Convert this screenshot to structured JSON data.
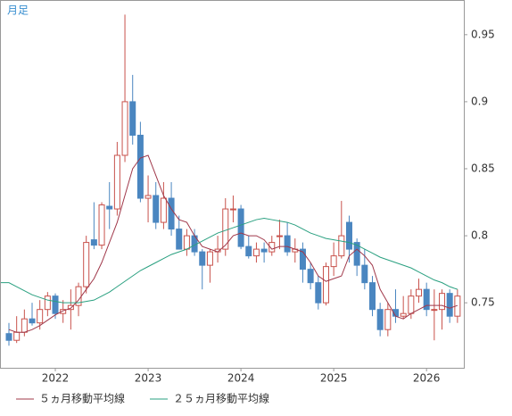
{
  "chart_data": {
    "type": "candlestick",
    "label": "月足",
    "categories": [
      null,
      null,
      null,
      null,
      null,
      null,
      "2022",
      null,
      null,
      null,
      null,
      null,
      null,
      null,
      null,
      null,
      null,
      null,
      "2023",
      null,
      null,
      null,
      null,
      null,
      null,
      null,
      null,
      null,
      null,
      null,
      "2024",
      null,
      null,
      null,
      null,
      null,
      null,
      null,
      null,
      null,
      null,
      null,
      "2025",
      null,
      null,
      null,
      null,
      null,
      null,
      null,
      null,
      null,
      null,
      null,
      "2026",
      null,
      null,
      null,
      null
    ],
    "open": [
      0.727,
      0.722,
      0.728,
      0.738,
      0.735,
      0.745,
      0.755,
      0.742,
      0.745,
      0.748,
      0.762,
      0.797,
      0.793,
      0.822,
      0.82,
      0.86,
      0.9,
      0.875,
      0.828,
      0.83,
      0.81,
      0.828,
      0.805,
      0.79,
      0.8,
      0.788,
      0.778,
      0.788,
      0.79,
      0.82,
      0.82,
      0.792,
      0.785,
      0.79,
      0.788,
      0.8,
      0.8,
      0.788,
      0.79,
      0.775,
      0.765,
      0.75,
      0.777,
      0.785,
      0.81,
      0.795,
      0.778,
      0.765,
      0.745,
      0.73,
      0.745,
      0.74,
      0.742,
      0.755,
      0.76,
      0.745,
      0.745,
      0.757,
      0.74
    ],
    "high": [
      0.735,
      0.74,
      0.745,
      0.75,
      0.752,
      0.758,
      0.757,
      0.752,
      0.76,
      0.765,
      0.8,
      0.825,
      0.825,
      0.84,
      0.87,
      0.965,
      0.92,
      0.885,
      0.845,
      0.84,
      0.84,
      0.84,
      0.815,
      0.805,
      0.805,
      0.79,
      0.79,
      0.8,
      0.828,
      0.83,
      0.823,
      0.8,
      0.795,
      0.795,
      0.8,
      0.812,
      0.81,
      0.798,
      0.795,
      0.78,
      0.77,
      0.78,
      0.795,
      0.826,
      0.815,
      0.798,
      0.79,
      0.77,
      0.75,
      0.75,
      0.76,
      0.755,
      0.76,
      0.768,
      0.765,
      0.76,
      0.76,
      0.76,
      0.76
    ],
    "low": [
      0.718,
      0.72,
      0.725,
      0.733,
      0.73,
      0.74,
      0.738,
      0.735,
      0.73,
      0.74,
      0.757,
      0.79,
      0.79,
      0.805,
      0.815,
      0.855,
      0.868,
      0.825,
      0.81,
      0.805,
      0.805,
      0.8,
      0.79,
      0.785,
      0.785,
      0.76,
      0.765,
      0.78,
      0.785,
      0.81,
      0.79,
      0.783,
      0.78,
      0.78,
      0.785,
      0.79,
      0.785,
      0.78,
      0.765,
      0.76,
      0.745,
      0.748,
      0.77,
      0.783,
      0.78,
      0.77,
      0.76,
      0.74,
      0.725,
      0.725,
      0.735,
      0.738,
      0.738,
      0.75,
      0.74,
      0.722,
      0.73,
      0.735,
      0.735
    ],
    "close": [
      0.722,
      0.728,
      0.738,
      0.735,
      0.745,
      0.755,
      0.742,
      0.745,
      0.748,
      0.762,
      0.795,
      0.793,
      0.823,
      0.82,
      0.86,
      0.9,
      0.875,
      0.828,
      0.83,
      0.81,
      0.828,
      0.805,
      0.79,
      0.8,
      0.788,
      0.778,
      0.788,
      0.79,
      0.82,
      0.82,
      0.792,
      0.785,
      0.79,
      0.788,
      0.795,
      0.8,
      0.788,
      0.79,
      0.775,
      0.765,
      0.75,
      0.777,
      0.785,
      0.8,
      0.79,
      0.778,
      0.765,
      0.745,
      0.73,
      0.745,
      0.74,
      0.742,
      0.755,
      0.76,
      0.745,
      0.745,
      0.757,
      0.74,
      0.755
    ],
    "up_color": "#c8524c",
    "down_color": "#4a86c0",
    "series": [
      {
        "name": "５ヵ月移動平均線",
        "color": "#a0384a",
        "values": [
          0.73,
          0.728,
          0.728,
          0.73,
          0.733,
          0.737,
          0.741,
          0.744,
          0.746,
          0.752,
          0.76,
          0.768,
          0.78,
          0.795,
          0.81,
          0.83,
          0.85,
          0.858,
          0.86,
          0.845,
          0.83,
          0.82,
          0.812,
          0.81,
          0.8,
          0.792,
          0.79,
          0.788,
          0.793,
          0.8,
          0.802,
          0.8,
          0.8,
          0.797,
          0.79,
          0.792,
          0.792,
          0.79,
          0.788,
          0.78,
          0.77,
          0.766,
          0.768,
          0.77,
          0.785,
          0.79,
          0.785,
          0.778,
          0.76,
          0.75,
          0.74,
          0.738,
          0.742,
          0.745,
          0.748,
          0.748,
          0.748,
          0.746,
          0.748
        ]
      },
      {
        "name": "２５ヵ月移動平均線",
        "color": "#2aa080",
        "values": [
          0.765,
          0.762,
          0.759,
          0.756,
          0.754,
          0.752,
          0.751,
          0.75,
          0.75,
          0.75,
          0.751,
          0.752,
          0.755,
          0.758,
          0.762,
          0.766,
          0.77,
          0.774,
          0.777,
          0.78,
          0.783,
          0.786,
          0.788,
          0.79,
          0.793,
          0.796,
          0.799,
          0.802,
          0.804,
          0.806,
          0.808,
          0.81,
          0.812,
          0.813,
          0.812,
          0.811,
          0.81,
          0.808,
          0.805,
          0.802,
          0.8,
          0.798,
          0.797,
          0.796,
          0.795,
          0.793,
          0.79,
          0.787,
          0.784,
          0.782,
          0.78,
          0.778,
          0.776,
          0.773,
          0.77,
          0.767,
          0.765,
          0.762,
          0.76
        ]
      }
    ],
    "ylim": [
      0.7015,
      0.9752
    ],
    "yticks": [
      0.75,
      0.8,
      0.85,
      0.9,
      0.95
    ]
  }
}
